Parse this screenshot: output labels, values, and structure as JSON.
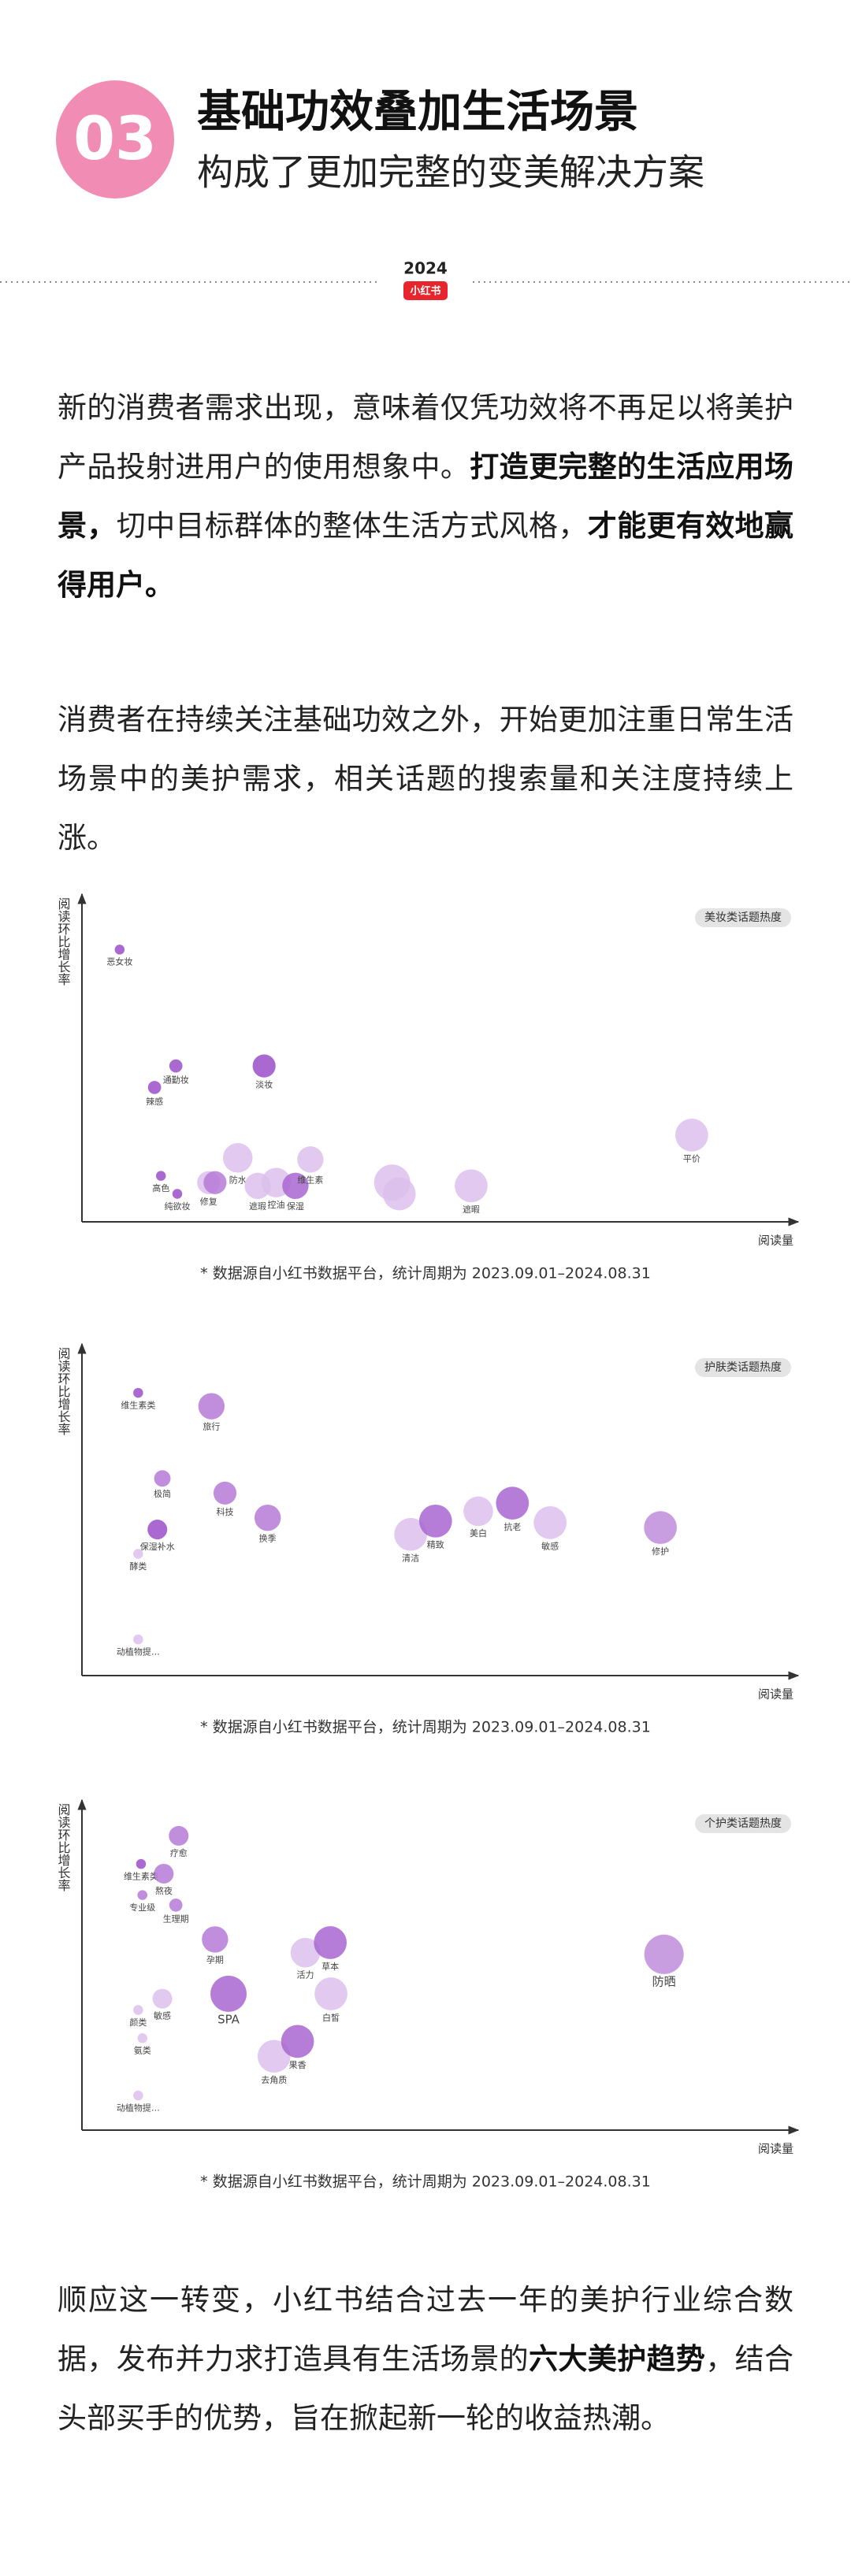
{
  "header": {
    "number": "03",
    "title": "基础功效叠加生活场景",
    "subtitle": "构成了更加完整的变美解决方案"
  },
  "badge": {
    "year": "2024",
    "brand": "小红书"
  },
  "paragraphs": [
    {
      "runs": [
        {
          "text": "新的消费者需求出现，意味着仅凭功效将不再足以将美护产品投射进用户的使用想象中。",
          "bold": false
        },
        {
          "text": "打造更完整的生活应用场景，",
          "bold": true
        },
        {
          "text": "切中目标群体的整体生活方式风格，",
          "bold": false
        },
        {
          "text": "才能更有效地赢得用户。",
          "bold": true
        }
      ]
    },
    {
      "runs": [
        {
          "text": "消费者在持续关注基础功效之外，开始更加注重日常生活场景中的美护需求，相关话题的搜索量和关注度持续上涨。",
          "bold": false
        }
      ]
    },
    {
      "runs": [
        {
          "text": "顺应这一转变，小红书结合过去一年的美护行业综合数据，发布并力求打造具有生活场景的",
          "bold": false
        },
        {
          "text": "六大美护趋势",
          "bold": true
        },
        {
          "text": "，结合头部买手的优势，旨在掀起新一轮的收益热潮。",
          "bold": false
        }
      ]
    }
  ],
  "chart_data": [
    {
      "type": "bubble",
      "legend": "美妆类话题热度",
      "y_label": "阅读环比增长率",
      "x_label": "阅读量",
      "note": "* 数据源自小红书数据平台，统计周期为 2023.09.01–2024.08.31",
      "xlim": [
        0,
        100
      ],
      "ylim": [
        0,
        100
      ],
      "points": [
        {
          "label": "恶女妆",
          "x": 5.3,
          "y": 84.7,
          "size": 3,
          "color": "#9b4fc8"
        },
        {
          "label": "通勤妆",
          "x": 13.2,
          "y": 48.5,
          "size": 4,
          "color": "#9b4fc8"
        },
        {
          "label": "辣感",
          "x": 10.2,
          "y": 41.8,
          "size": 4,
          "color": "#9b4fc8"
        },
        {
          "label": "淡妆",
          "x": 25.6,
          "y": 48.5,
          "size": 7,
          "color": "#9b4fc8"
        },
        {
          "label": "高色",
          "x": 11.1,
          "y": 14.3,
          "size": 3,
          "color": "#9b4fc8"
        },
        {
          "label": "纯欲妆",
          "x": 13.4,
          "y": 8.7,
          "size": 3,
          "color": "#9b4fc8"
        },
        {
          "label": "修复",
          "x": 17.8,
          "y": 12.2,
          "size": 7,
          "color": "#dcc0ec"
        },
        {
          "label": null,
          "x": 18.7,
          "y": 12.2,
          "size": 7,
          "color": "#b57ad6"
        },
        {
          "label": "防水",
          "x": 21.9,
          "y": 19.9,
          "size": 9,
          "color": "#dcc0ec"
        },
        {
          "label": "遮瑕",
          "x": 24.7,
          "y": 11.2,
          "size": 8,
          "color": "#dcc0ec"
        },
        {
          "label": "控油",
          "x": 27.3,
          "y": 12.2,
          "size": 9,
          "color": "#dcc0ec"
        },
        {
          "label": "保湿",
          "x": 30.0,
          "y": 11.2,
          "size": 8,
          "color": "#a866d0"
        },
        {
          "label": "维生素",
          "x": 32.1,
          "y": 19.4,
          "size": 8,
          "color": "#dcc0ec"
        },
        {
          "label": null,
          "x": 43.6,
          "y": 12.2,
          "size": 11,
          "color": "#dcc0ec"
        },
        {
          "label": null,
          "x": 44.6,
          "y": 8.7,
          "size": 10,
          "color": "#dcc0ec"
        },
        {
          "label": "遮暇",
          "x": 54.7,
          "y": 11.2,
          "size": 10,
          "color": "#dcc0ec"
        },
        {
          "label": "平价",
          "x": 85.7,
          "y": 27.0,
          "size": 10,
          "color": "#dcc0ec"
        }
      ]
    },
    {
      "type": "bubble",
      "legend": "护肤类话题热度",
      "y_label": "阅读环比增长率",
      "x_label": "阅读量",
      "note": "* 数据源自小红书数据平台，统计周期为 2023.09.01–2024.08.31",
      "xlim": [
        0,
        100
      ],
      "ylim": [
        0,
        100
      ],
      "points": [
        {
          "label": "维生素类",
          "x": 7.9,
          "y": 86.9,
          "size": 3,
          "color": "#9b4fc8"
        },
        {
          "label": "旅行",
          "x": 18.2,
          "y": 82.8,
          "size": 8,
          "color": "#b57ad6"
        },
        {
          "label": "极简",
          "x": 11.3,
          "y": 60.6,
          "size": 5,
          "color": "#b57ad6"
        },
        {
          "label": "科技",
          "x": 20.1,
          "y": 56.1,
          "size": 7,
          "color": "#b57ad6"
        },
        {
          "label": "换季",
          "x": 26.1,
          "y": 48.5,
          "size": 8,
          "color": "#b57ad6"
        },
        {
          "label": "保湿补水",
          "x": 10.6,
          "y": 44.9,
          "size": 6,
          "color": "#9b4fc8"
        },
        {
          "label": "酵类",
          "x": 7.9,
          "y": 37.4,
          "size": 3,
          "color": "#dcc0ec"
        },
        {
          "label": "动植物提…",
          "x": 7.9,
          "y": 11.1,
          "size": 3,
          "color": "#dcc0ec"
        },
        {
          "label": "清洁",
          "x": 46.2,
          "y": 43.4,
          "size": 10,
          "color": "#dcc0ec"
        },
        {
          "label": "精致",
          "x": 49.7,
          "y": 47.5,
          "size": 10,
          "color": "#a866d0"
        },
        {
          "label": "美白",
          "x": 55.7,
          "y": 50.5,
          "size": 9,
          "color": "#dcc0ec"
        },
        {
          "label": "抗老",
          "x": 60.5,
          "y": 53.0,
          "size": 10,
          "color": "#a866d0"
        },
        {
          "label": "敏感",
          "x": 65.8,
          "y": 47.0,
          "size": 10,
          "color": "#dcc0ec"
        },
        {
          "label": "修护",
          "x": 81.3,
          "y": 45.5,
          "size": 10,
          "color": "#c08ddb"
        }
      ]
    },
    {
      "type": "bubble",
      "legend": "个护类话题热度",
      "y_label": "阅读环比增长率",
      "x_label": "阅读量",
      "note": "* 数据源自小红书数据平台，统计周期为 2023.09.01–2024.08.31",
      "xlim": [
        0,
        100
      ],
      "ylim": [
        0,
        100
      ],
      "points": [
        {
          "label": "疗愈",
          "x": 13.6,
          "y": 90.9,
          "size": 6,
          "color": "#b57ad6"
        },
        {
          "label": "维生素类",
          "x": 8.3,
          "y": 82.2,
          "size": 3,
          "color": "#9b4fc8"
        },
        {
          "label": "熬夜",
          "x": 11.5,
          "y": 79.2,
          "size": 6,
          "color": "#b57ad6"
        },
        {
          "label": "专业级",
          "x": 8.5,
          "y": 72.6,
          "size": 3,
          "color": "#b57ad6"
        },
        {
          "label": "生理期",
          "x": 13.2,
          "y": 69.5,
          "size": 4,
          "color": "#b57ad6"
        },
        {
          "label": "孕期",
          "x": 18.7,
          "y": 58.9,
          "size": 8,
          "color": "#b57ad6"
        },
        {
          "label": "SPA",
          "x": 20.6,
          "y": 42.1,
          "size": 11,
          "color": "#a866d0"
        },
        {
          "label": "活力",
          "x": 31.4,
          "y": 54.8,
          "size": 9,
          "color": "#dcc0ec"
        },
        {
          "label": "草本",
          "x": 34.9,
          "y": 57.9,
          "size": 10,
          "color": "#a866d0"
        },
        {
          "label": "白皙",
          "x": 35.0,
          "y": 42.1,
          "size": 10,
          "color": "#dcc0ec"
        },
        {
          "label": "颜类",
          "x": 7.9,
          "y": 37.1,
          "size": 3,
          "color": "#dcc0ec"
        },
        {
          "label": "敏感",
          "x": 11.3,
          "y": 40.6,
          "size": 6,
          "color": "#dcc0ec"
        },
        {
          "label": "氨类",
          "x": 8.5,
          "y": 28.4,
          "size": 3,
          "color": "#dcc0ec"
        },
        {
          "label": "去角质",
          "x": 27.0,
          "y": 22.8,
          "size": 10,
          "color": "#dcc0ec"
        },
        {
          "label": "果香",
          "x": 30.3,
          "y": 27.4,
          "size": 10,
          "color": "#a866d0"
        },
        {
          "label": "防晒",
          "x": 81.8,
          "y": 54.3,
          "size": 12,
          "color": "#c08ddb"
        },
        {
          "label": "动植物提…",
          "x": 7.9,
          "y": 10.7,
          "size": 3,
          "color": "#dcc0ec"
        }
      ]
    }
  ]
}
